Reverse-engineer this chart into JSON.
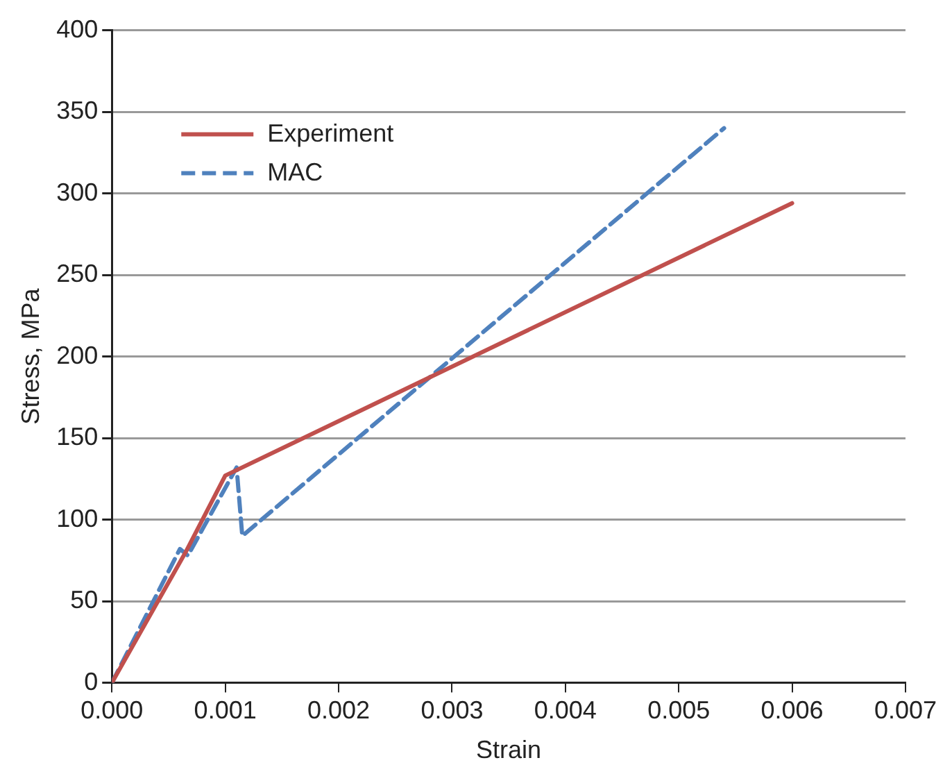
{
  "chart_data": {
    "type": "line",
    "xlabel": "Strain",
    "ylabel": "Stress, MPa",
    "xlim": [
      0,
      0.007
    ],
    "ylim": [
      0,
      400
    ],
    "xticks": [
      {
        "value": 0,
        "label": "0.000"
      },
      {
        "value": 0.001,
        "label": "0.001"
      },
      {
        "value": 0.002,
        "label": "0.002"
      },
      {
        "value": 0.003,
        "label": "0.003"
      },
      {
        "value": 0.004,
        "label": "0.004"
      },
      {
        "value": 0.005,
        "label": "0.005"
      },
      {
        "value": 0.006,
        "label": "0.006"
      },
      {
        "value": 0.007,
        "label": "0.007"
      }
    ],
    "yticks": [
      0,
      50,
      100,
      150,
      200,
      250,
      300,
      350,
      400
    ],
    "grid": "y",
    "legend": "top left",
    "marker": "none",
    "series": [
      {
        "name": "Experiment",
        "color": "#c0504d",
        "line_style": "solid",
        "x": [
          0,
          0.00065,
          0.001,
          0.006
        ],
        "values": [
          0,
          80,
          127,
          294
        ]
      },
      {
        "name": "MAC",
        "color": "#4f81bd",
        "line_style": "dashed",
        "x": [
          0,
          0.0006,
          0.00067,
          0.0011,
          0.00115,
          0.0054
        ],
        "values": [
          0,
          82,
          78,
          132,
          90,
          340
        ]
      }
    ]
  }
}
